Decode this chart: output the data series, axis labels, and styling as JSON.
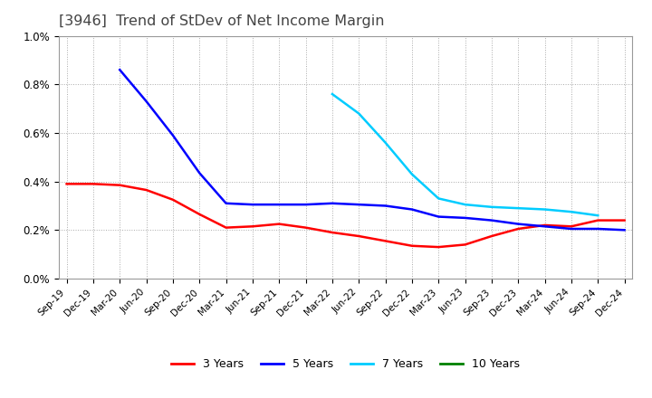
{
  "title": "[3946]  Trend of StDev of Net Income Margin",
  "title_fontsize": 11.5,
  "title_color": "#444444",
  "background_color": "#ffffff",
  "plot_bg_color": "#ffffff",
  "grid_color": "#aaaaaa",
  "ylim": [
    0.0,
    0.01
  ],
  "yticks": [
    0.0,
    0.002,
    0.004,
    0.006,
    0.008,
    0.01
  ],
  "x_labels": [
    "Sep-19",
    "Dec-19",
    "Mar-20",
    "Jun-20",
    "Sep-20",
    "Dec-20",
    "Mar-21",
    "Jun-21",
    "Sep-21",
    "Dec-21",
    "Mar-22",
    "Jun-22",
    "Sep-22",
    "Dec-22",
    "Mar-23",
    "Jun-23",
    "Sep-23",
    "Dec-23",
    "Mar-24",
    "Jun-24",
    "Sep-24",
    "Dec-24"
  ],
  "series": {
    "3yr": {
      "color": "#ff0000",
      "label": "3 Years",
      "values": [
        0.0039,
        0.0039,
        0.00385,
        0.00365,
        0.00325,
        0.00265,
        0.0021,
        0.00215,
        0.00225,
        0.0021,
        0.0019,
        0.00175,
        0.00155,
        0.00135,
        0.0013,
        0.0014,
        0.00175,
        0.00205,
        0.0022,
        0.00215,
        0.0024,
        0.0024
      ]
    },
    "5yr": {
      "color": "#0000ff",
      "label": "5 Years",
      "values": [
        null,
        null,
        0.0086,
        0.0073,
        0.0059,
        0.00435,
        0.0031,
        0.00305,
        0.00305,
        0.00305,
        0.0031,
        0.00305,
        0.003,
        0.00285,
        0.00255,
        0.0025,
        0.0024,
        0.00225,
        0.00215,
        0.00205,
        0.00205,
        0.002
      ]
    },
    "7yr": {
      "color": "#00ccff",
      "label": "7 Years",
      "values": [
        null,
        null,
        null,
        null,
        null,
        null,
        null,
        null,
        null,
        null,
        0.0076,
        0.0068,
        0.0056,
        0.0043,
        0.0033,
        0.00305,
        0.00295,
        0.0029,
        0.00285,
        0.00275,
        0.0026,
        null
      ]
    },
    "10yr": {
      "color": "#008000",
      "label": "10 Years",
      "values": [
        null,
        null,
        null,
        null,
        null,
        null,
        null,
        null,
        null,
        null,
        null,
        null,
        null,
        null,
        null,
        null,
        null,
        null,
        null,
        null,
        null,
        null
      ]
    }
  },
  "legend_labels": [
    "3 Years",
    "5 Years",
    "7 Years",
    "10 Years"
  ],
  "legend_colors": [
    "#ff0000",
    "#0000ff",
    "#00ccff",
    "#008000"
  ]
}
